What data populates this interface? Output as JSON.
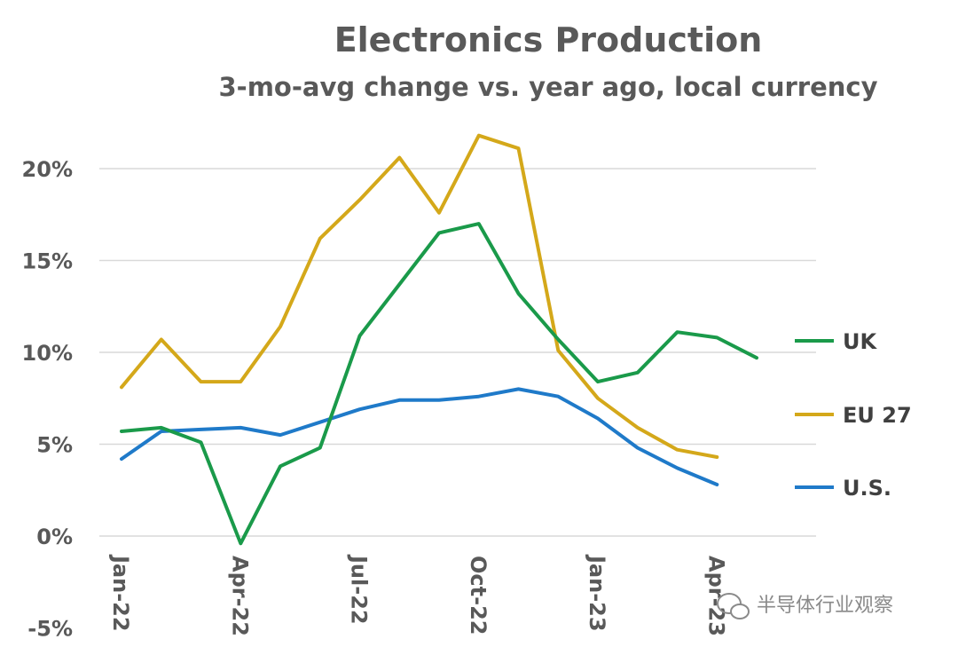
{
  "chart_data": {
    "type": "line",
    "title": "Electronics Production",
    "subtitle": "3-mo-avg change vs. year ago, local currency",
    "xlabel": "",
    "ylabel": "",
    "ylim": [
      -5,
      22
    ],
    "yticks": [
      -5,
      0,
      5,
      10,
      15,
      20
    ],
    "ytick_labels": [
      "-5%",
      "0%",
      "5%",
      "10%",
      "15%",
      "20%"
    ],
    "x": [
      "Jan-22",
      "Feb-22",
      "Mar-22",
      "Apr-22",
      "May-22",
      "Jun-22",
      "Jul-22",
      "Aug-22",
      "Sep-22",
      "Oct-22",
      "Nov-22",
      "Dec-22",
      "Jan-23",
      "Feb-23",
      "Mar-23",
      "Apr-23",
      "May-23"
    ],
    "xtick_labels": [
      "Jan-22",
      "Apr-22",
      "Jul-22",
      "Oct-22",
      "Jan-23",
      "Apr-23"
    ],
    "xtick_indices": [
      0,
      3,
      6,
      9,
      12,
      15
    ],
    "grid": true,
    "legend_position": "right",
    "series": [
      {
        "name": "UK",
        "color": "#1a9a4a",
        "values": [
          5.7,
          5.9,
          5.1,
          -0.4,
          3.8,
          4.8,
          10.9,
          13.7,
          16.5,
          17.0,
          13.2,
          10.7,
          8.4,
          8.9,
          11.1,
          10.8,
          9.7
        ]
      },
      {
        "name": "EU 27",
        "color": "#d4a81a",
        "values": [
          8.1,
          10.7,
          8.4,
          8.4,
          11.4,
          16.2,
          18.3,
          20.6,
          17.6,
          21.8,
          21.1,
          10.1,
          7.5,
          5.9,
          4.7,
          4.3,
          null
        ]
      },
      {
        "name": "U.S.",
        "color": "#1f7ac9",
        "values": [
          4.2,
          5.7,
          5.8,
          5.9,
          5.5,
          6.2,
          6.9,
          7.4,
          7.4,
          7.6,
          8.0,
          7.6,
          6.4,
          4.8,
          3.7,
          2.8,
          null
        ]
      }
    ],
    "watermark": "半导体行业观察"
  }
}
